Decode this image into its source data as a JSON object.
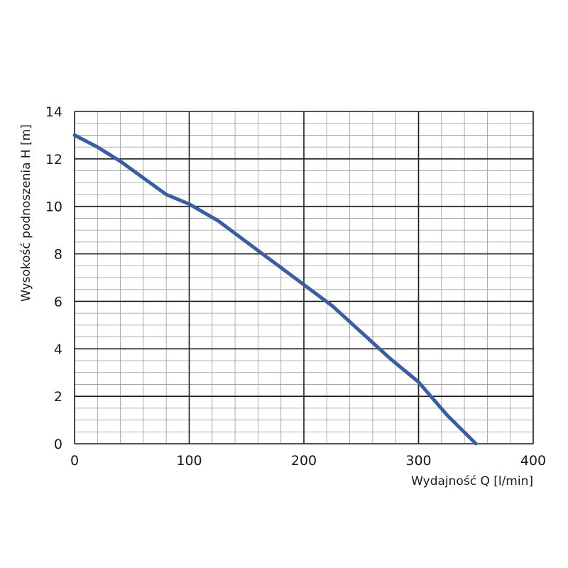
{
  "chart_data": {
    "type": "line",
    "xlabel": "Wydajność Q [l/min]",
    "ylabel": "Wysokość podnoszenia H [m]",
    "xlim": [
      0,
      400
    ],
    "ylim": [
      0,
      14
    ],
    "x_ticks": [
      0,
      100,
      200,
      300,
      400
    ],
    "y_ticks": [
      0,
      2,
      4,
      6,
      8,
      10,
      12,
      14
    ],
    "x_minor_step": 20,
    "y_minor_step": 0.5,
    "grid": true,
    "line_color": "#3a5ea0",
    "series": [
      {
        "x": [
          0,
          20,
          40,
          60,
          80,
          100,
          125,
          150,
          175,
          200,
          225,
          250,
          275,
          300,
          325,
          350
        ],
        "y": [
          13.0,
          12.5,
          11.9,
          11.2,
          10.5,
          10.1,
          9.4,
          8.5,
          7.6,
          6.7,
          5.8,
          4.7,
          3.6,
          2.6,
          1.2,
          0.0
        ]
      }
    ]
  }
}
